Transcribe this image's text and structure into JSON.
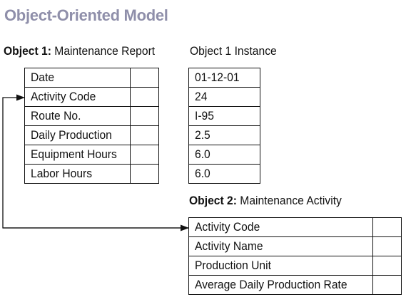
{
  "title": "Object-Oriented Model",
  "object1": {
    "label": "Object 1:",
    "name": "Maintenance Report",
    "fields": [
      "Date",
      "Activity Code",
      "Route No.",
      "Daily Production",
      "Equipment Hours",
      "Labor Hours"
    ]
  },
  "instance": {
    "label": "Object 1 Instance",
    "values": [
      "01-12-01",
      "24",
      "I-95",
      "2.5",
      "6.0",
      "6.0"
    ]
  },
  "object2": {
    "label": "Object 2:",
    "name": "Maintenance Activity",
    "fields": [
      "Activity Code",
      "Activity Name",
      "Production Unit",
      "Average Daily Production Rate"
    ]
  },
  "colors": {
    "title": "#8f8faa",
    "lines": "#111111"
  }
}
